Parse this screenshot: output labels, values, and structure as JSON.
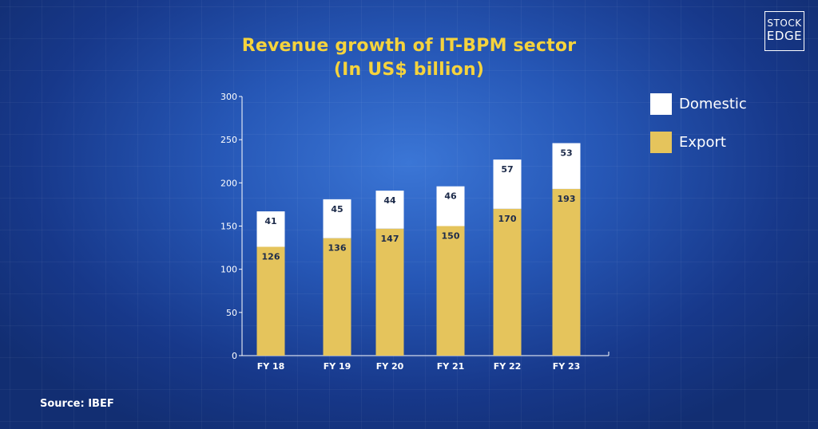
{
  "title_line1": "Revenue growth of IT-BPM sector",
  "title_line2": "(In US$ billion)",
  "logo": {
    "line1": "STOCK",
    "line2": "EDGE"
  },
  "source": "Source: IBEF",
  "legend": [
    {
      "label": "Domestic",
      "color": "#ffffff"
    },
    {
      "label": "Export",
      "color": "#e5c45c"
    }
  ],
  "chart_data": {
    "type": "bar",
    "stacked": true,
    "title": "Revenue growth of IT-BPM sector (In US$ billion)",
    "categories": [
      "FY 18",
      "FY 19",
      "FY 20",
      "FY 21",
      "FY 22",
      "FY 23"
    ],
    "series": [
      {
        "name": "Export",
        "color": "#e5c45c",
        "values": [
          126,
          136,
          147,
          150,
          170,
          193
        ]
      },
      {
        "name": "Domestic",
        "color": "#ffffff",
        "values": [
          41,
          45,
          44,
          46,
          57,
          53
        ]
      }
    ],
    "ylim": [
      0,
      300
    ],
    "yticks": [
      0,
      50,
      100,
      150,
      200,
      250,
      300
    ],
    "legend_position": "right",
    "grid": false
  }
}
